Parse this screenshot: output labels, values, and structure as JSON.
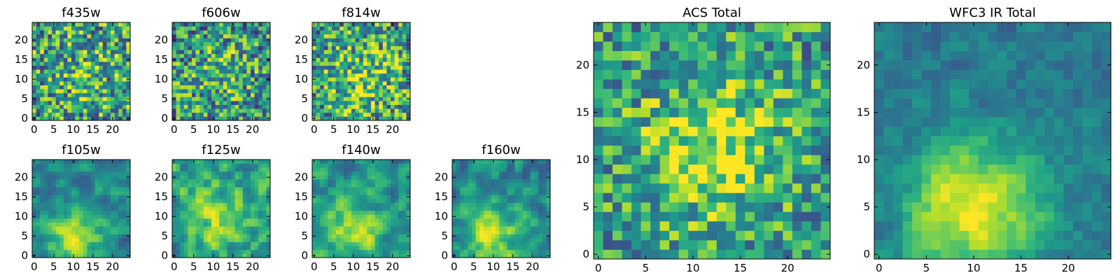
{
  "chart_data": [
    {
      "type": "heatmap",
      "title": "f435w",
      "grid_size": 25,
      "xticks": [
        0,
        5,
        10,
        15,
        20
      ],
      "yticks": [
        0,
        5,
        10,
        15,
        20
      ],
      "xlim": [
        0,
        25
      ],
      "ylim": [
        0,
        25
      ],
      "colormap": "viridis",
      "pattern": {
        "seed": 101,
        "noise": 0.85,
        "center_boost": 0.1,
        "center_x": 12.5,
        "center_y": 12.5,
        "sigma": 8,
        "block": 1,
        "smooth": false,
        "base": 0.55
      }
    },
    {
      "type": "heatmap",
      "title": "f606w",
      "grid_size": 25,
      "xticks": [
        0,
        5,
        10,
        15,
        20
      ],
      "yticks": [
        0,
        5,
        10,
        15,
        20
      ],
      "xlim": [
        0,
        25
      ],
      "ylim": [
        0,
        25
      ],
      "colormap": "viridis",
      "pattern": {
        "seed": 202,
        "noise": 0.8,
        "center_boost": 0.18,
        "center_x": 12.0,
        "center_y": 12.0,
        "sigma": 6,
        "block": 1,
        "smooth": false,
        "base": 0.5
      }
    },
    {
      "type": "heatmap",
      "title": "f814w",
      "grid_size": 25,
      "xticks": [
        0,
        5,
        10,
        15,
        20
      ],
      "yticks": [
        0,
        5,
        10,
        15,
        20
      ],
      "xlim": [
        0,
        25
      ],
      "ylim": [
        0,
        25
      ],
      "colormap": "viridis",
      "pattern": {
        "seed": 303,
        "noise": 0.8,
        "center_boost": 0.22,
        "center_x": 12.0,
        "center_y": 10.0,
        "sigma": 6,
        "block": 1,
        "smooth": false,
        "base": 0.55
      }
    },
    {
      "type": "heatmap",
      "title": "f105w",
      "grid_size": 25,
      "xticks": [
        0,
        5,
        10,
        15,
        20
      ],
      "yticks": [
        0,
        5,
        10,
        15,
        20
      ],
      "xlim": [
        0,
        25
      ],
      "ylim": [
        0,
        25
      ],
      "colormap": "viridis",
      "pattern": {
        "seed": 404,
        "noise": 0.55,
        "center_boost": 0.4,
        "center_x": 10.0,
        "center_y": 5.0,
        "sigma": 5,
        "block": 2,
        "smooth": true,
        "base": 0.45
      }
    },
    {
      "type": "heatmap",
      "title": "f125w",
      "grid_size": 25,
      "xticks": [
        0,
        5,
        10,
        15,
        20
      ],
      "yticks": [
        0,
        5,
        10,
        15,
        20
      ],
      "xlim": [
        0,
        25
      ],
      "ylim": [
        0,
        25
      ],
      "colormap": "viridis",
      "pattern": {
        "seed": 505,
        "noise": 0.7,
        "center_boost": 0.25,
        "center_x": 11.0,
        "center_y": 10.0,
        "sigma": 6,
        "block": 2,
        "smooth": true,
        "base": 0.55
      }
    },
    {
      "type": "heatmap",
      "title": "f140w",
      "grid_size": 25,
      "xticks": [
        0,
        5,
        10,
        15,
        20
      ],
      "yticks": [
        0,
        5,
        10,
        15,
        20
      ],
      "xlim": [
        0,
        25
      ],
      "ylim": [
        0,
        25
      ],
      "colormap": "viridis",
      "pattern": {
        "seed": 606,
        "noise": 0.6,
        "center_boost": 0.3,
        "center_x": 10.0,
        "center_y": 6.0,
        "sigma": 6,
        "block": 2,
        "smooth": true,
        "base": 0.5
      }
    },
    {
      "type": "heatmap",
      "title": "f160w",
      "grid_size": 25,
      "xticks": [
        0,
        5,
        10,
        15,
        20
      ],
      "yticks": [
        0,
        5,
        10,
        15,
        20
      ],
      "xlim": [
        0,
        25
      ],
      "ylim": [
        0,
        25
      ],
      "colormap": "viridis",
      "pattern": {
        "seed": 707,
        "noise": 0.6,
        "center_boost": 0.4,
        "center_x": 10.0,
        "center_y": 6.0,
        "sigma": 6,
        "block": 2,
        "smooth": true,
        "base": 0.45
      }
    },
    {
      "type": "heatmap",
      "title": "ACS Total",
      "grid_size": 25,
      "xticks": [
        0,
        5,
        10,
        15,
        20
      ],
      "yticks": [
        0,
        5,
        10,
        15,
        20
      ],
      "xlim": [
        0,
        25
      ],
      "ylim": [
        0,
        25
      ],
      "colormap": "viridis",
      "pattern": {
        "seed": 808,
        "noise": 0.65,
        "center_boost": 0.38,
        "center_x": 12.0,
        "center_y": 11.0,
        "sigma": 5,
        "block": 1,
        "smooth": false,
        "base": 0.55
      }
    },
    {
      "type": "heatmap",
      "title": "WFC3 IR Total",
      "grid_size": 25,
      "xticks": [
        0,
        5,
        10,
        15,
        20
      ],
      "yticks": [
        0,
        5,
        10,
        15,
        20
      ],
      "xlim": [
        0,
        25
      ],
      "ylim": [
        0,
        25
      ],
      "colormap": "viridis",
      "pattern": {
        "seed": 909,
        "noise": 0.4,
        "center_boost": 0.6,
        "center_x": 10.0,
        "center_y": 5.0,
        "sigma": 5,
        "block": 1,
        "smooth": true,
        "base": 0.4
      }
    }
  ]
}
